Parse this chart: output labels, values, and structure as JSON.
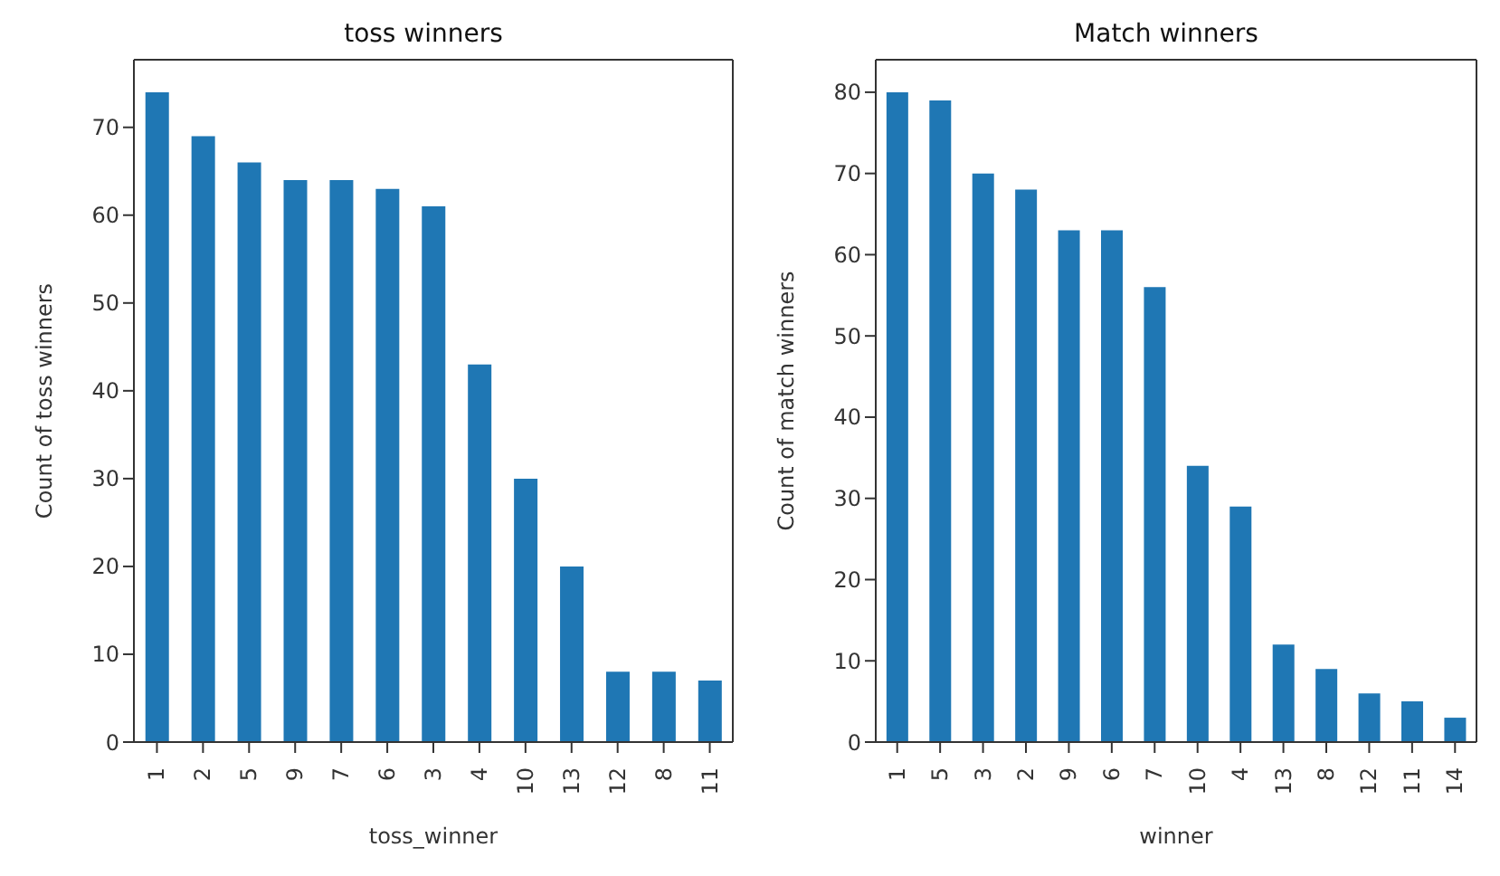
{
  "chart_data": [
    {
      "type": "bar",
      "title": "toss winners",
      "xlabel": "toss_winner",
      "ylabel": "Count of toss winners",
      "categories": [
        "1",
        "2",
        "5",
        "9",
        "7",
        "6",
        "3",
        "4",
        "10",
        "13",
        "12",
        "8",
        "11"
      ],
      "values": [
        74,
        69,
        66,
        64,
        64,
        63,
        61,
        43,
        30,
        20,
        8,
        8,
        7
      ],
      "color": "#1f77b4",
      "ylim": [
        0,
        77.7
      ],
      "yticks": [
        0,
        10,
        20,
        30,
        40,
        50,
        60,
        70
      ],
      "grid": false,
      "legend": false
    },
    {
      "type": "bar",
      "title": "Match winners",
      "xlabel": "winner",
      "ylabel": "Count of match winners",
      "categories": [
        "1",
        "5",
        "3",
        "2",
        "9",
        "6",
        "7",
        "10",
        "4",
        "13",
        "8",
        "12",
        "11",
        "14"
      ],
      "values": [
        80,
        79,
        70,
        68,
        63,
        63,
        56,
        34,
        29,
        12,
        9,
        6,
        5,
        3
      ],
      "color": "#1f77b4",
      "ylim": [
        0,
        84
      ],
      "yticks": [
        0,
        10,
        20,
        30,
        40,
        50,
        60,
        70,
        80
      ],
      "grid": false,
      "legend": false
    }
  ]
}
